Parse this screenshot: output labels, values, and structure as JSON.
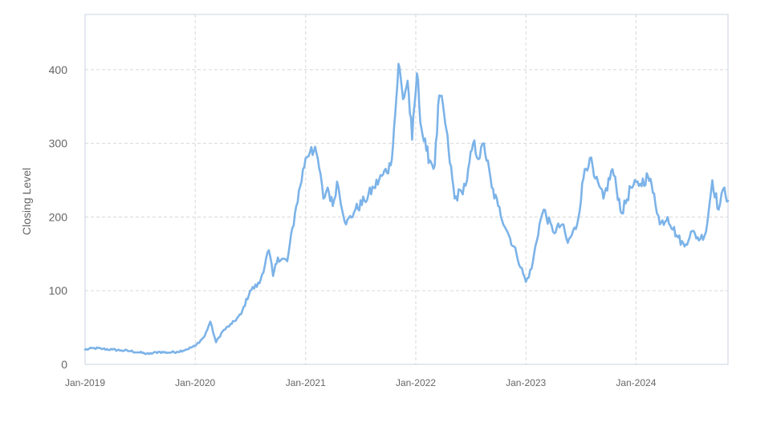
{
  "chart_data": {
    "type": "line",
    "ylabel": "Closing Level",
    "xlabel": "",
    "title": "",
    "ylim": [
      0,
      475
    ],
    "xlim": [
      "2019-01-01",
      "2024-11-01"
    ],
    "yticks": [
      0,
      100,
      200,
      300,
      400
    ],
    "xticks": [
      {
        "label": "Jan-2019",
        "date": "2019-01-01"
      },
      {
        "label": "Jan-2020",
        "date": "2020-01-01"
      },
      {
        "label": "Jan-2021",
        "date": "2021-01-01"
      },
      {
        "label": "Jan-2022",
        "date": "2022-01-01"
      },
      {
        "label": "Jan-2023",
        "date": "2023-01-01"
      },
      {
        "label": "Jan-2024",
        "date": "2024-01-01"
      }
    ],
    "grid": true,
    "line_color": "#7cb3e8",
    "series": [
      {
        "name": "",
        "points": [
          [
            "2019-01-01",
            20
          ],
          [
            "2019-02-01",
            22
          ],
          [
            "2019-03-01",
            21
          ],
          [
            "2019-04-01",
            20
          ],
          [
            "2019-05-01",
            19
          ],
          [
            "2019-06-01",
            18
          ],
          [
            "2019-07-01",
            16
          ],
          [
            "2019-08-01",
            14
          ],
          [
            "2019-09-01",
            17
          ],
          [
            "2019-10-01",
            16
          ],
          [
            "2019-11-01",
            17
          ],
          [
            "2019-12-01",
            20
          ],
          [
            "2020-01-01",
            25
          ],
          [
            "2020-02-01",
            38
          ],
          [
            "2020-02-20",
            58
          ],
          [
            "2020-03-10",
            30
          ],
          [
            "2020-04-01",
            45
          ],
          [
            "2020-05-01",
            55
          ],
          [
            "2020-06-01",
            68
          ],
          [
            "2020-07-01",
            100
          ],
          [
            "2020-08-01",
            110
          ],
          [
            "2020-09-01",
            155
          ],
          [
            "2020-09-15",
            120
          ],
          [
            "2020-10-01",
            145
          ],
          [
            "2020-11-01",
            140
          ],
          [
            "2020-12-01",
            215
          ],
          [
            "2021-01-01",
            280
          ],
          [
            "2021-01-20",
            295
          ],
          [
            "2021-02-10",
            280
          ],
          [
            "2021-03-01",
            225
          ],
          [
            "2021-03-15",
            240
          ],
          [
            "2021-04-01",
            215
          ],
          [
            "2021-04-15",
            248
          ],
          [
            "2021-05-15",
            190
          ],
          [
            "2021-06-15",
            210
          ],
          [
            "2021-07-15",
            222
          ],
          [
            "2021-08-15",
            240
          ],
          [
            "2021-09-15",
            258
          ],
          [
            "2021-10-10",
            270
          ],
          [
            "2021-10-25",
            340
          ],
          [
            "2021-11-05",
            408
          ],
          [
            "2021-11-20",
            360
          ],
          [
            "2021-12-05",
            385
          ],
          [
            "2021-12-20",
            305
          ],
          [
            "2022-01-05",
            395
          ],
          [
            "2022-01-20",
            320
          ],
          [
            "2022-02-05",
            290
          ],
          [
            "2022-02-20",
            275
          ],
          [
            "2022-03-05",
            270
          ],
          [
            "2022-03-20",
            365
          ],
          [
            "2022-04-05",
            340
          ],
          [
            "2022-04-20",
            290
          ],
          [
            "2022-05-10",
            225
          ],
          [
            "2022-06-01",
            235
          ],
          [
            "2022-06-20",
            250
          ],
          [
            "2022-07-10",
            300
          ],
          [
            "2022-08-01",
            280
          ],
          [
            "2022-08-15",
            300
          ],
          [
            "2022-09-10",
            240
          ],
          [
            "2022-10-01",
            215
          ],
          [
            "2022-11-01",
            180
          ],
          [
            "2022-12-01",
            150
          ],
          [
            "2023-01-01",
            112
          ],
          [
            "2023-01-20",
            130
          ],
          [
            "2023-02-15",
            190
          ],
          [
            "2023-03-01",
            210
          ],
          [
            "2023-04-01",
            180
          ],
          [
            "2023-05-01",
            190
          ],
          [
            "2023-05-20",
            165
          ],
          [
            "2023-06-20",
            190
          ],
          [
            "2023-07-15",
            265
          ],
          [
            "2023-08-01",
            280
          ],
          [
            "2023-08-15",
            255
          ],
          [
            "2023-09-15",
            225
          ],
          [
            "2023-10-15",
            265
          ],
          [
            "2023-11-15",
            205
          ],
          [
            "2023-12-15",
            240
          ],
          [
            "2024-01-15",
            245
          ],
          [
            "2024-02-10",
            255
          ],
          [
            "2024-03-01",
            232
          ],
          [
            "2024-03-20",
            190
          ],
          [
            "2024-04-15",
            200
          ],
          [
            "2024-05-15",
            175
          ],
          [
            "2024-06-10",
            160
          ],
          [
            "2024-07-01",
            180
          ],
          [
            "2024-08-01",
            170
          ],
          [
            "2024-08-20",
            180
          ],
          [
            "2024-09-10",
            250
          ],
          [
            "2024-10-01",
            210
          ],
          [
            "2024-10-20",
            240
          ],
          [
            "2024-11-01",
            222
          ]
        ]
      }
    ]
  }
}
